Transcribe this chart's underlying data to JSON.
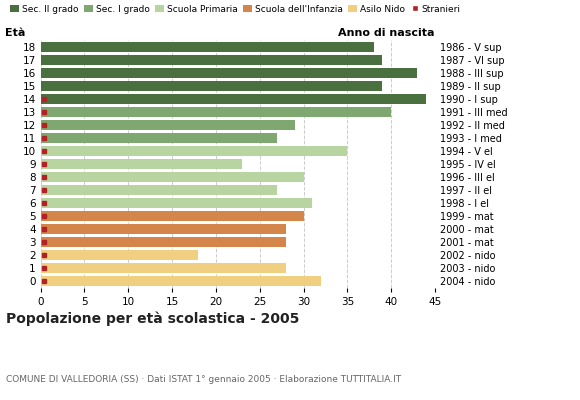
{
  "ages": [
    18,
    17,
    16,
    15,
    14,
    13,
    12,
    11,
    10,
    9,
    8,
    7,
    6,
    5,
    4,
    3,
    2,
    1,
    0
  ],
  "years": [
    "1986 - V sup",
    "1987 - VI sup",
    "1988 - III sup",
    "1989 - II sup",
    "1990 - I sup",
    "1991 - III med",
    "1992 - II med",
    "1993 - I med",
    "1994 - V el",
    "1995 - IV el",
    "1996 - III el",
    "1997 - II el",
    "1998 - I el",
    "1999 - mat",
    "2000 - mat",
    "2001 - mat",
    "2002 - nido",
    "2003 - nido",
    "2004 - nido"
  ],
  "values": [
    38,
    39,
    43,
    39,
    44,
    40,
    29,
    27,
    35,
    23,
    30,
    27,
    31,
    30,
    28,
    28,
    18,
    28,
    32
  ],
  "stranieri": [
    0,
    0,
    0,
    0,
    1,
    1,
    1,
    1,
    1,
    1,
    1,
    1,
    1,
    1,
    1,
    1,
    1,
    1,
    1
  ],
  "bar_colors": [
    "#4a7040",
    "#4a7040",
    "#4a7040",
    "#4a7040",
    "#4a7040",
    "#7fa870",
    "#7fa870",
    "#7fa870",
    "#b8d4a0",
    "#b8d4a0",
    "#b8d4a0",
    "#b8d4a0",
    "#b8d4a0",
    "#d4854a",
    "#d4854a",
    "#d4854a",
    "#f0d080",
    "#f0d080",
    "#f0d080"
  ],
  "stranieri_color": "#b22222",
  "title": "Popolazione per età scolastica - 2005",
  "subtitle": "COMUNE DI VALLEDORIA (SS) · Dati ISTAT 1° gennaio 2005 · Elaborazione TUTTITALIA.IT",
  "ylabel_left": "Età",
  "ylabel_right": "Anno di nascita",
  "xlim": [
    0,
    45
  ],
  "xticks": [
    0,
    5,
    10,
    15,
    20,
    25,
    30,
    35,
    40,
    45
  ],
  "grid_color": "#cccccc",
  "bg_color": "#ffffff",
  "legend_labels": [
    "Sec. II grado",
    "Sec. I grado",
    "Scuola Primaria",
    "Scuola dell'Infanzia",
    "Asilo Nido",
    "Stranieri"
  ],
  "legend_colors": [
    "#4a7040",
    "#7fa870",
    "#b8d4a0",
    "#d4854a",
    "#f0d080",
    "#b22222"
  ]
}
